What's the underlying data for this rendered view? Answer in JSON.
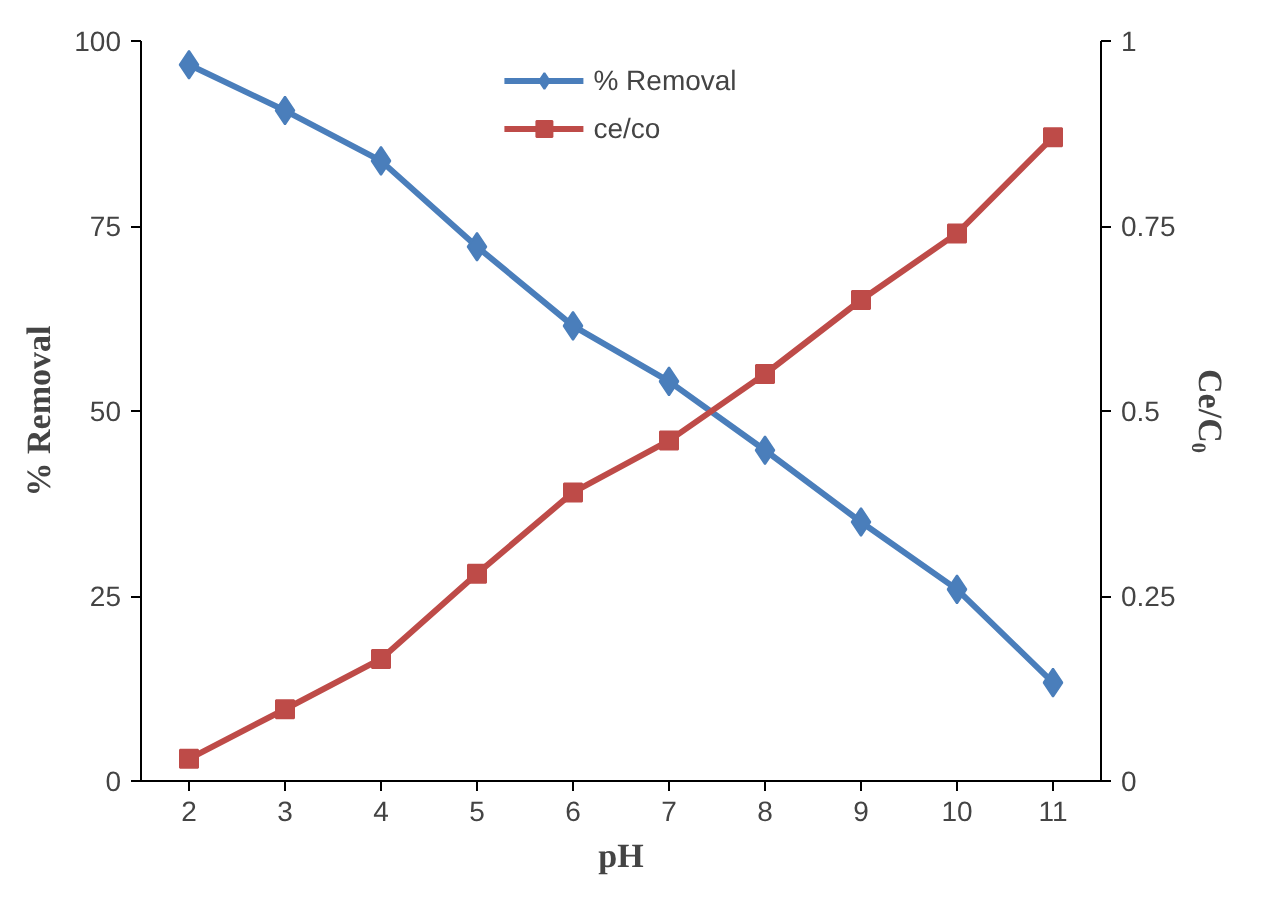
{
  "chart_data": {
    "type": "line",
    "xlabel": "pH",
    "ylabel": "% Removal",
    "y2label": "Ce/C₀",
    "categories": [
      "2",
      "3",
      "4",
      "5",
      "6",
      "7",
      "8",
      "9",
      "10",
      "11"
    ],
    "series": [
      {
        "name": "% Removal",
        "color": "#4a7ebb",
        "marker": "diamond",
        "values": [
          96.8,
          90.6,
          83.8,
          72.2,
          61.5,
          54,
          44.7,
          35,
          25.9,
          13.3
        ]
      },
      {
        "name": "ce/co",
        "color": "#be4b48",
        "marker": "square",
        "axis": "y2",
        "values": [
          0.03,
          0.097,
          0.165,
          0.28,
          0.39,
          0.46,
          0.55,
          0.65,
          0.74,
          0.87
        ]
      }
    ],
    "ylim": [
      0,
      100
    ],
    "yticks": [
      0,
      25,
      50,
      75,
      100
    ],
    "y2lim": [
      0,
      1
    ],
    "y2ticks": [
      0,
      0.25,
      0.5,
      0.75,
      1
    ],
    "grid": false,
    "legend": "top"
  }
}
